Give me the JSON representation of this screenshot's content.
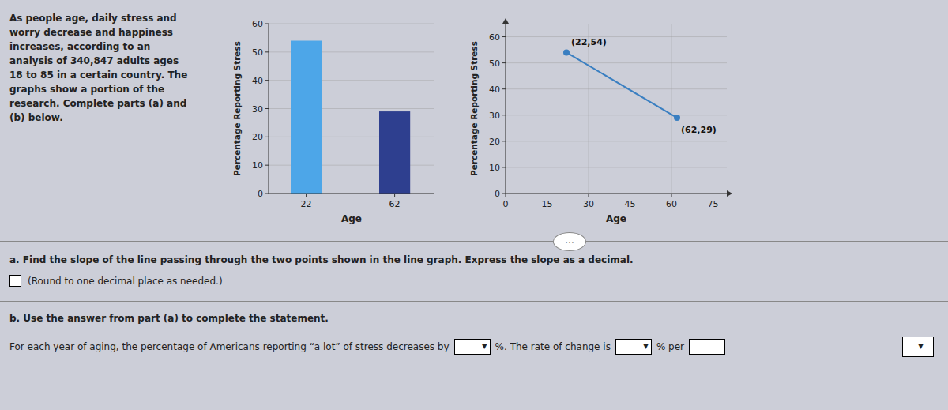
{
  "chart_data": [
    {
      "type": "bar",
      "x": [
        22,
        62
      ],
      "values": [
        54,
        29
      ],
      "colors": [
        "#4da6e8",
        "#2e3f8f"
      ],
      "xlabel": "Age",
      "ylabel": "Percentage Reporting Stress",
      "xlim": [
        5,
        80
      ],
      "xticks": [
        22,
        62
      ],
      "ylim": [
        0,
        60
      ],
      "yticks": [
        0,
        10,
        20,
        30,
        40,
        50,
        60
      ],
      "grid": "y"
    },
    {
      "type": "line",
      "x": [
        22,
        62
      ],
      "values": [
        54,
        29
      ],
      "color": "#3a7fc1",
      "marker": "circle",
      "annotations": [
        "(22,54)",
        "(62,29)"
      ],
      "xlabel": "Age",
      "ylabel": "Percentage Reporting Stress",
      "xlim": [
        0,
        80
      ],
      "xticks": [
        0,
        15,
        30,
        45,
        60,
        75
      ],
      "ylim": [
        0,
        65
      ],
      "yticks": [
        0,
        10,
        20,
        30,
        40,
        50,
        60
      ],
      "grid": true
    }
  ],
  "texts": {
    "intro": "As people age, daily stress and\nworry decrease and happiness\nincreases, according to an\nanalysis of 340,847 adults ages\n18 to 85 in a certain country. The\ngraphs show a portion of the\nresearch. Complete parts (a) and\n(b) below.",
    "part_a": "a. Find the slope of the line passing through the two points shown in the line graph. Express the slope as a decimal.",
    "part_a_hint": "(Round to one decimal place as needed.)",
    "part_b": "b. Use the answer from part (a) to complete the statement.",
    "part_b_text": "For each year of aging, the percentage of Americans reporting “a lot” of stress decreases by",
    "part_b_text2": "%. The rate of change is",
    "part_b_text3": "% per",
    "more_button": "...",
    "dropdown_arrow": "▼"
  }
}
